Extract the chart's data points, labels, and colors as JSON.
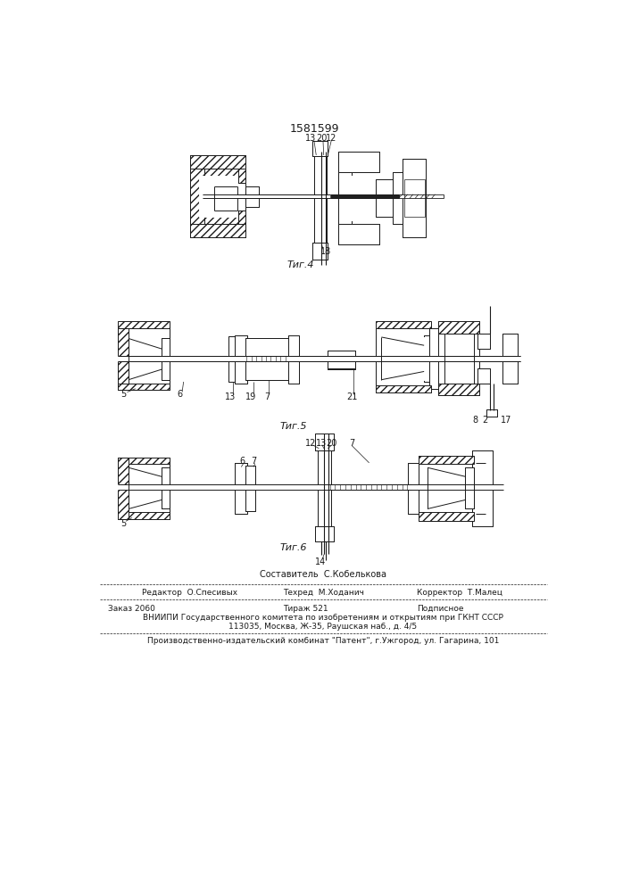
{
  "title_number": "1581599",
  "fig4_label": "Τиг.4",
  "fig5_label": "Τиг.5",
  "fig6_label": "Τиг.6",
  "footer_composer": "Составитель  С.Кобелькова",
  "footer_editor": "Редактор  О.Спесивых",
  "footer_tech": "Техред  М.Ходанич",
  "footer_corrector": "Корректор  Т.Малец",
  "footer_order": "Заказ 2060",
  "footer_print": "Тираж 521",
  "footer_sign": "Подписное",
  "footer_vnipi": "ВНИИПИ Государственного комитета по изобретениям и открытиям при ГКНТ СССР",
  "footer_addr": "113035, Москва, Ж-35, Раушская наб., д. 4/5",
  "footer_plant": "Производственно-издательский комбинат \"Патент\", г.Ужгород, ул. Гагарина, 101",
  "bg_color": "#ffffff",
  "line_color": "#1a1a1a",
  "text_color": "#1a1a1a"
}
